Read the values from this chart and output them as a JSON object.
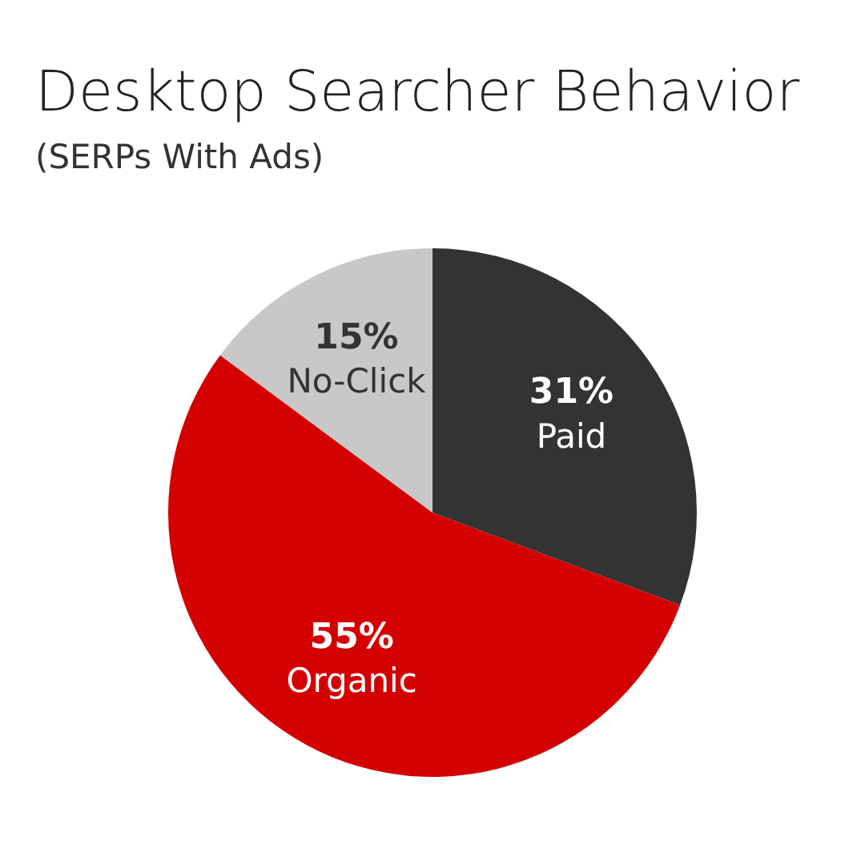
{
  "chart_data": {
    "type": "pie",
    "title": "Desktop Searcher Behavior",
    "subtitle": "(SERPs With Ads)",
    "categories": [
      "Paid",
      "Organic",
      "No-Click"
    ],
    "values": [
      31,
      55,
      15
    ],
    "value_labels": [
      "31%",
      "55%",
      "15%"
    ],
    "colors": [
      "#333333",
      "#d40000",
      "#c8c8c8"
    ],
    "legend": false
  }
}
